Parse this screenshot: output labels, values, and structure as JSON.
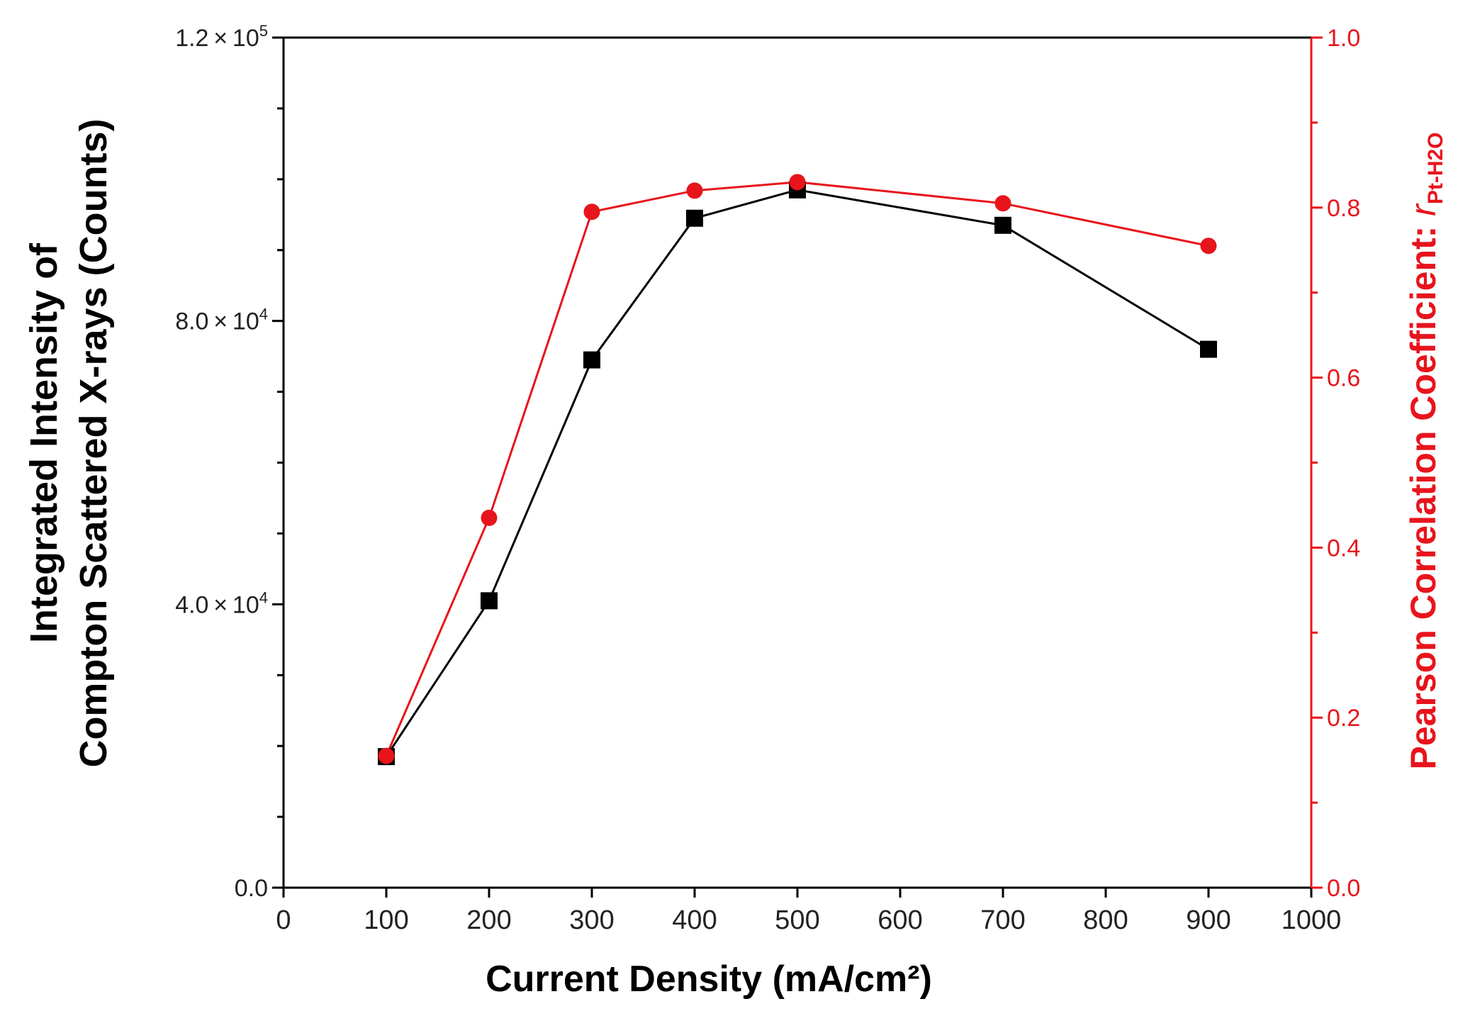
{
  "chart_data": {
    "type": "line",
    "x": [
      100,
      200,
      300,
      400,
      500,
      700,
      900
    ],
    "series": [
      {
        "name": "Integrated Intensity of Compton Scattered X-rays",
        "axis": "left",
        "marker": "square",
        "color": "#000000",
        "values": [
          18500,
          40500,
          74500,
          94500,
          98500,
          93500,
          76000
        ]
      },
      {
        "name": "Pearson Correlation Coefficient",
        "axis": "right",
        "marker": "circle",
        "color": "#e8141c",
        "values": [
          0.155,
          0.435,
          0.795,
          0.82,
          0.83,
          0.805,
          0.755
        ]
      }
    ],
    "xlabel": "Current Density (mA/cm²)",
    "xlim": [
      0,
      1000
    ],
    "xticks": [
      "0",
      "100",
      "200",
      "300",
      "400",
      "500",
      "600",
      "700",
      "800",
      "900",
      "1000"
    ],
    "ylabel_left_line1": "Integrated Intensity of",
    "ylabel_left_line2": "Compton Scattered X-rays  (Counts)",
    "ylim_left": [
      0,
      120000
    ],
    "yticks_left": [
      {
        "value": 0,
        "mantissa": "0.0",
        "exponent": ""
      },
      {
        "value": 40000,
        "mantissa": "4.0",
        "exponent": "4"
      },
      {
        "value": 80000,
        "mantissa": "8.0",
        "exponent": "4"
      },
      {
        "value": 120000,
        "mantissa": "1.2",
        "exponent": "5"
      }
    ],
    "ylabel_right_main": "Pearson Correlation Coefficient: ",
    "ylabel_right_r": "r",
    "ylabel_right_sub": "Pt-H2O",
    "ylim_right": [
      0,
      1
    ],
    "yticks_right": [
      "0.0",
      "0.2",
      "0.4",
      "0.6",
      "0.8",
      "1.0"
    ],
    "colors": {
      "right_axis": "#e8141c",
      "left_axis": "#000000"
    }
  }
}
